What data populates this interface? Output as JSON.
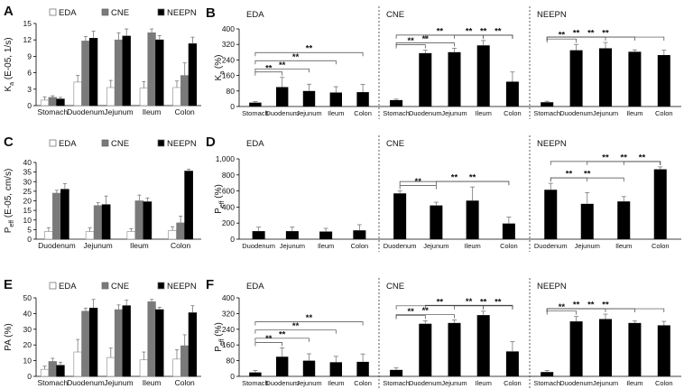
{
  "chart_data": [
    {
      "id": "A",
      "type": "bar",
      "panel_label": "A",
      "ylabel": "Ka (E-05, 1/s)",
      "ylim": [
        0,
        15
      ],
      "yticks": [
        0,
        3,
        6,
        9,
        12,
        15
      ],
      "categories": [
        "Stomach",
        "Duodenum",
        "Jejunum",
        "Ileum",
        "Colon"
      ],
      "legend": [
        "EDA",
        "CNE",
        "NEEPN"
      ],
      "series": [
        {
          "name": "EDA",
          "color": "#ffffff",
          "values": [
            1.0,
            4.3,
            3.3,
            3.2,
            3.3
          ],
          "errors": [
            0.6,
            1.2,
            1.3,
            1.2,
            1.2
          ]
        },
        {
          "name": "CNE",
          "color": "#7a7a7a",
          "values": [
            1.5,
            11.8,
            12.0,
            13.3,
            5.5
          ],
          "errors": [
            0.3,
            0.8,
            1.3,
            0.7,
            2.3
          ]
        },
        {
          "name": "NEEPN",
          "color": "#000000",
          "values": [
            1.2,
            12.3,
            12.7,
            12.0,
            11.3
          ],
          "errors": [
            0.3,
            1.3,
            1.3,
            0.8,
            1.2
          ]
        }
      ]
    },
    {
      "id": "B",
      "type": "bar",
      "panel_label": "B",
      "ylabel": "Ka (%)",
      "ylim": [
        0,
        400
      ],
      "yticks": [
        0,
        80,
        160,
        240,
        320,
        400
      ],
      "groups": [
        {
          "label": "EDA",
          "categories": [
            "Stomach",
            "Duodenum",
            "Jejunum",
            "Ileum",
            "Colon"
          ],
          "values": [
            20,
            100,
            80,
            72,
            74
          ],
          "errors": [
            5,
            50,
            35,
            30,
            40
          ],
          "sig": [
            [
              0,
              1
            ],
            [
              0,
              2
            ],
            [
              0,
              3
            ],
            [
              0,
              4
            ]
          ]
        },
        {
          "label": "CNE",
          "categories": [
            "Stomach",
            "Duodenum",
            "Jejunum",
            "Ileum",
            "Colon"
          ],
          "values": [
            33,
            275,
            280,
            315,
            128
          ],
          "errors": [
            5,
            15,
            20,
            25,
            50
          ],
          "sig": [
            [
              0,
              1
            ],
            [
              0,
              2
            ],
            [
              0,
              3
            ],
            [
              1,
              4
            ],
            [
              2,
              4
            ],
            [
              3,
              4
            ]
          ]
        },
        {
          "label": "NEEPN",
          "categories": [
            "Stomach",
            "Duodenum",
            "Jejunum",
            "Ileum",
            "Colon"
          ],
          "values": [
            22,
            290,
            300,
            282,
            265
          ],
          "errors": [
            5,
            30,
            30,
            10,
            25
          ],
          "sig": [
            [
              0,
              1
            ],
            [
              0,
              2
            ],
            [
              0,
              3
            ],
            [
              0,
              4
            ]
          ]
        }
      ],
      "sig_label": "**"
    },
    {
      "id": "C",
      "type": "bar",
      "panel_label": "C",
      "ylabel": "Peff (E-05, cm/s)",
      "ylim": [
        0,
        40
      ],
      "yticks": [
        0,
        5,
        10,
        15,
        20,
        25,
        30,
        35,
        40
      ],
      "categories": [
        "Duodenum",
        "Jejunum",
        "Ileum",
        "Colon"
      ],
      "legend": [
        "EDA",
        "CNE",
        "NEEPN"
      ],
      "series": [
        {
          "name": "EDA",
          "color": "#ffffff",
          "values": [
            4.0,
            4.0,
            4.0,
            4.5
          ],
          "errors": [
            2.0,
            2.0,
            1.5,
            2.0
          ]
        },
        {
          "name": "CNE",
          "color": "#7a7a7a",
          "values": [
            24.0,
            17.5,
            20.0,
            8.5
          ],
          "errors": [
            1.5,
            1.5,
            3.0,
            3.5
          ]
        },
        {
          "name": "NEEPN",
          "color": "#000000",
          "values": [
            26.0,
            18.0,
            19.5,
            35.5
          ],
          "errors": [
            3.0,
            4.5,
            2.0,
            1.0
          ]
        }
      ]
    },
    {
      "id": "D",
      "type": "bar",
      "panel_label": "D",
      "ylabel": "Peff (%)",
      "ylim": [
        0,
        1000
      ],
      "yticks": [
        0,
        200,
        400,
        600,
        800,
        1000
      ],
      "ytick_labels": [
        "0",
        "200",
        "400",
        "600",
        "800",
        "1,000"
      ],
      "groups": [
        {
          "label": "EDA",
          "categories": [
            "Duodenum",
            "Jejunum",
            "Ileum",
            "Colon"
          ],
          "values": [
            100,
            100,
            95,
            110
          ],
          "errors": [
            50,
            50,
            40,
            70
          ],
          "sig": []
        },
        {
          "label": "CNE",
          "categories": [
            "Duodenum",
            "Jejunum",
            "Ileum",
            "Colon"
          ],
          "values": [
            570,
            420,
            480,
            195
          ],
          "errors": [
            30,
            40,
            170,
            80
          ],
          "sig": [
            [
              0,
              1
            ],
            [
              0,
              3
            ],
            [
              1,
              3
            ]
          ]
        },
        {
          "label": "NEEPN",
          "categories": [
            "Duodenum",
            "Jejunum",
            "Ileum",
            "Colon"
          ],
          "values": [
            615,
            440,
            470,
            870
          ],
          "errors": [
            80,
            140,
            60,
            30
          ],
          "sig": [
            [
              0,
              1
            ],
            [
              0,
              2
            ],
            [
              0,
              3
            ],
            [
              1,
              3
            ],
            [
              2,
              3
            ]
          ]
        }
      ],
      "sig_label": "**"
    },
    {
      "id": "E",
      "type": "bar",
      "panel_label": "E",
      "ylabel": "PA (%)",
      "ylim": [
        0,
        50
      ],
      "yticks": [
        0,
        10,
        20,
        30,
        40,
        50
      ],
      "categories": [
        "Stomach",
        "Duodenum",
        "Jejunum",
        "Ileum",
        "Colon"
      ],
      "legend": [
        "EDA",
        "CNE",
        "NEEPN"
      ],
      "series": [
        {
          "name": "EDA",
          "color": "#ffffff",
          "values": [
            4.5,
            15.5,
            12.0,
            10.5,
            11.0
          ],
          "errors": [
            2.0,
            8.0,
            6.0,
            5.0,
            6.0
          ]
        },
        {
          "name": "CNE",
          "color": "#7a7a7a",
          "values": [
            9.5,
            41.5,
            42.5,
            47.5,
            19.5
          ],
          "errors": [
            2.0,
            2.0,
            3.0,
            1.5,
            7.0
          ]
        },
        {
          "name": "NEEPN",
          "color": "#000000",
          "values": [
            7.0,
            43.5,
            45.0,
            42.5,
            40.5
          ],
          "errors": [
            2.0,
            5.5,
            3.5,
            1.5,
            4.5
          ]
        }
      ]
    },
    {
      "id": "F",
      "type": "bar",
      "panel_label": "F",
      "ylabel": "Peff (%)",
      "ylim": [
        0,
        400
      ],
      "yticks": [
        0,
        80,
        160,
        240,
        320,
        400
      ],
      "groups": [
        {
          "label": "EDA",
          "categories": [
            "Stomach",
            "Duodenum",
            "Jejunum",
            "Ileum",
            "Colon"
          ],
          "values": [
            20,
            100,
            80,
            72,
            74
          ],
          "errors": [
            10,
            45,
            35,
            30,
            40
          ],
          "sig": [
            [
              0,
              1
            ],
            [
              0,
              2
            ],
            [
              0,
              3
            ],
            [
              0,
              4
            ]
          ]
        },
        {
          "label": "CNE",
          "categories": [
            "Stomach",
            "Duodenum",
            "Jejunum",
            "Ileum",
            "Colon"
          ],
          "values": [
            33,
            268,
            272,
            312,
            127
          ],
          "errors": [
            10,
            15,
            15,
            20,
            50
          ],
          "sig": [
            [
              0,
              1
            ],
            [
              0,
              2
            ],
            [
              0,
              3
            ],
            [
              1,
              4
            ],
            [
              2,
              4
            ],
            [
              3,
              4
            ]
          ]
        },
        {
          "label": "NEEPN",
          "categories": [
            "Stomach",
            "Duodenum",
            "Jejunum",
            "Ileum",
            "Colon"
          ],
          "values": [
            22,
            280,
            292,
            272,
            260
          ],
          "errors": [
            8,
            25,
            25,
            10,
            20
          ],
          "sig": [
            [
              0,
              1
            ],
            [
              0,
              2
            ],
            [
              0,
              3
            ],
            [
              0,
              4
            ]
          ]
        }
      ],
      "sig_label": "**"
    }
  ]
}
